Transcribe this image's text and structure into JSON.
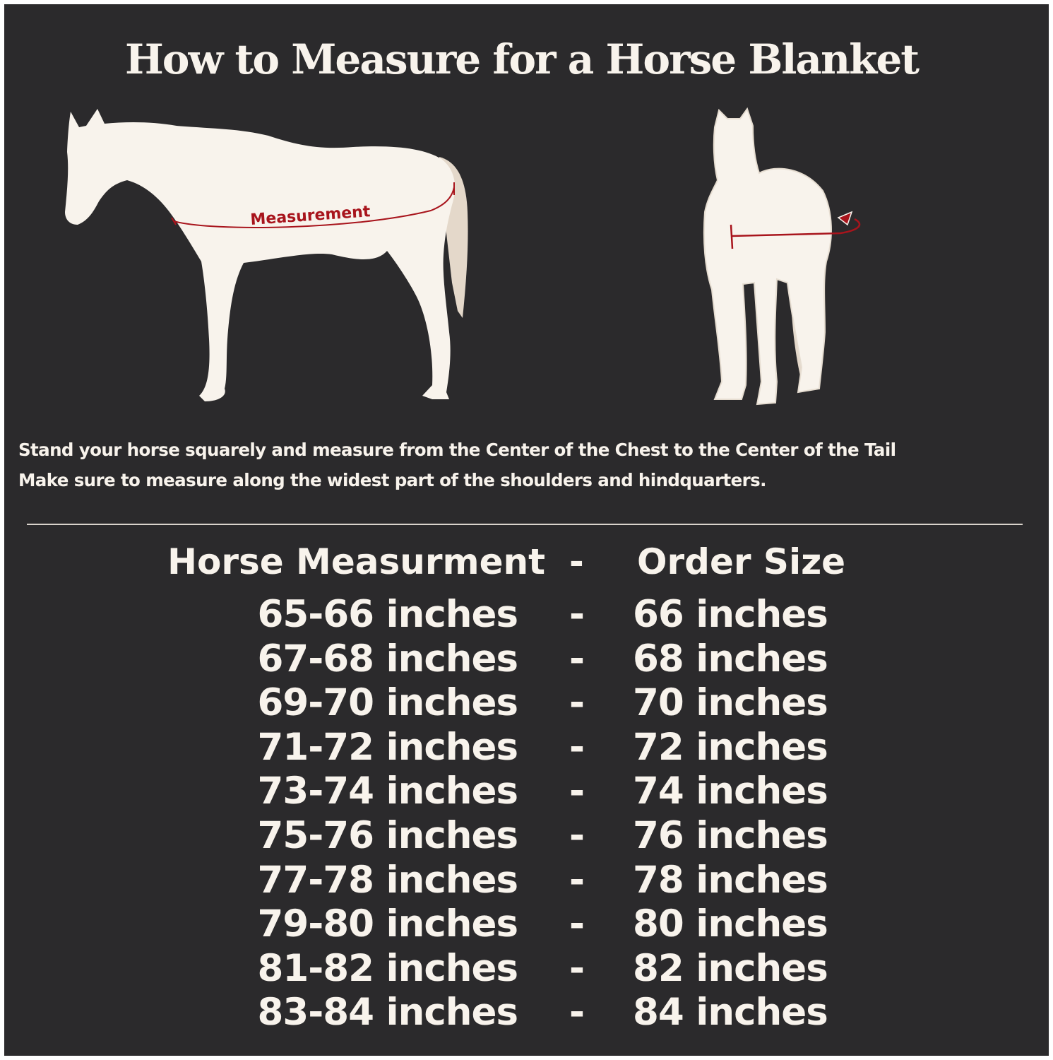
{
  "title": "How to Measure for a Horse Blanket",
  "diagram": {
    "side_view_label": "Measurement",
    "colors": {
      "background": "#2b2a2c",
      "horse": "#f8f3ec",
      "tail": "#e4d8ca",
      "measure_line": "#a8141c"
    }
  },
  "instructions": [
    "Stand your horse squarely and measure from the Center of the Chest to the Center of the Tail",
    "Make sure to measure along the widest part of the shoulders and hindquarters."
  ],
  "size_table": {
    "header": {
      "measurement": "Horse Measurment",
      "separator": "-",
      "size": "Order Size"
    },
    "rows": [
      {
        "measurement": "65-66 inches",
        "separator": "-",
        "size": "66 inches"
      },
      {
        "measurement": "67-68 inches",
        "separator": "-",
        "size": "68 inches"
      },
      {
        "measurement": "69-70 inches",
        "separator": "-",
        "size": "70 inches"
      },
      {
        "measurement": "71-72 inches",
        "separator": "-",
        "size": "72 inches"
      },
      {
        "measurement": "73-74 inches",
        "separator": "-",
        "size": "74 inches"
      },
      {
        "measurement": "75-76 inches",
        "separator": "-",
        "size": "76 inches"
      },
      {
        "measurement": "77-78 inches",
        "separator": "-",
        "size": "78 inches"
      },
      {
        "measurement": "79-80 inches",
        "separator": "-",
        "size": "80 inches"
      },
      {
        "measurement": "81-82 inches",
        "separator": "-",
        "size": "82 inches"
      },
      {
        "measurement": "83-84 inches",
        "separator": "-",
        "size": "84 inches"
      }
    ]
  }
}
